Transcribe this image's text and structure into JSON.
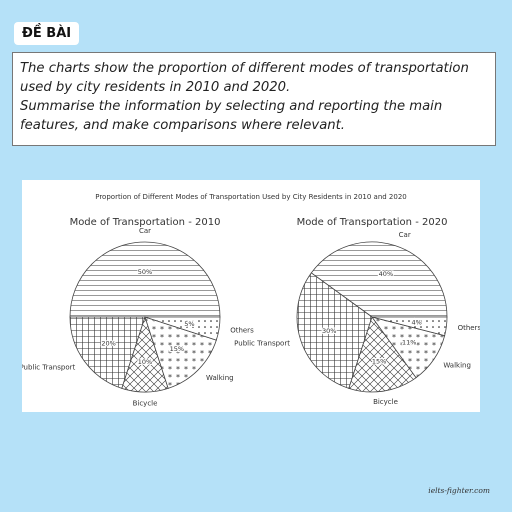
{
  "header": {
    "label": "ĐỀ BÀI"
  },
  "prompt": {
    "paragraphs": [
      "The charts show the proportion of different modes of transportation used by city residents in 2010 and 2020.",
      "Summarise the information by selecting and reporting the main features, and make comparisons where relevant."
    ]
  },
  "figure_title": "Proportion of Different Modes of Transportation Used by City Residents in 2010 and 2020",
  "chart_data": [
    {
      "type": "pie",
      "title": "Mode of Transportation - 2010",
      "categories": [
        "Car",
        "Public Transport",
        "Bicycle",
        "Walking",
        "Others"
      ],
      "values": [
        50,
        20,
        10,
        15,
        5
      ],
      "value_labels": [
        "50%",
        "20%",
        "10%",
        "15%",
        "5%"
      ]
    },
    {
      "type": "pie",
      "title": "Mode of Transportation - 2020",
      "categories": [
        "Car",
        "Public Transport",
        "Bicycle",
        "Walking",
        "Others"
      ],
      "values": [
        40,
        30,
        15,
        11,
        4
      ],
      "value_labels": [
        "40%",
        "30%",
        "15%",
        "11%",
        "4%"
      ]
    }
  ],
  "watermark": "ielts-fighter.com"
}
